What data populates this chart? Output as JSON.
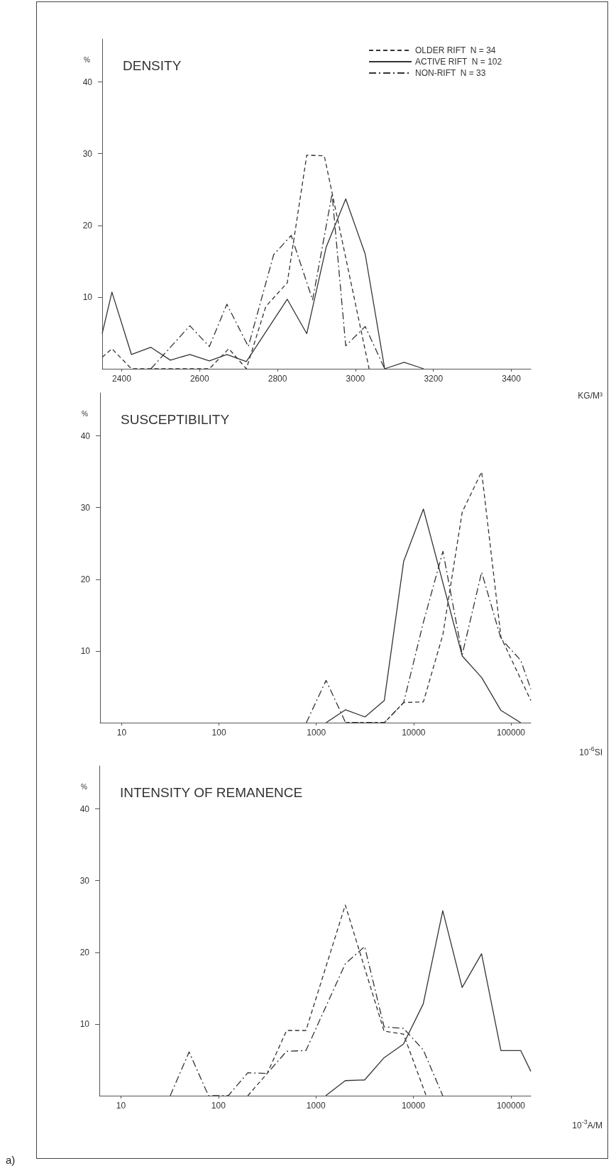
{
  "chart_data": [
    {
      "type": "line",
      "title": "DENSITY",
      "xlabel": "KG/M³",
      "ylabel": "%",
      "xlim": [
        2350,
        3450
      ],
      "xticks": [
        2400,
        2600,
        2800,
        3000,
        3200,
        3400
      ],
      "ylim": [
        0,
        46
      ],
      "yticks": [
        10,
        20,
        30,
        40
      ],
      "grid": false,
      "marker": "none",
      "legend": "top right",
      "series": [
        {
          "name": "OLDER RIFT  N = 34",
          "color": "#333333",
          "line_style": "dashed",
          "x": [
            2350,
            2375,
            2425,
            2475,
            2525,
            2575,
            2625,
            2675,
            2720,
            2770,
            2825,
            2875,
            2920,
            3035
          ],
          "values": [
            1.6,
            2.8,
            0,
            0,
            0,
            0,
            0,
            2.8,
            0,
            8.7,
            12,
            29.8,
            29.7,
            0
          ]
        },
        {
          "name": "ACTIVE RIFT  N = 102",
          "color": "#333333",
          "line_style": "solid",
          "x": [
            2350,
            2375,
            2425,
            2475,
            2525,
            2575,
            2625,
            2670,
            2720,
            2825,
            2875,
            2925,
            2975,
            3025,
            3075,
            3125,
            3175
          ],
          "values": [
            4.9,
            10.7,
            2.0,
            3.0,
            1.2,
            2.0,
            1.1,
            2.0,
            1.0,
            9.7,
            4.9,
            17,
            23.7,
            16,
            0,
            0.9,
            0
          ]
        },
        {
          "name": "NON-RIFT  N = 33",
          "color": "#333333",
          "line_style": "dashdot",
          "x": [
            2475,
            2575,
            2625,
            2670,
            2725,
            2790,
            2835,
            2890,
            2940,
            2975,
            3025,
            3075
          ],
          "values": [
            0,
            6.0,
            3.1,
            9.0,
            3.1,
            15.9,
            18.6,
            9.6,
            24.4,
            3.2,
            5.9,
            0
          ]
        }
      ]
    },
    {
      "type": "line",
      "title": "SUSCEPTIBILITY",
      "xlabel": "10$^{-6}$SI",
      "ylabel": "%",
      "log": "x",
      "xlim": [
        6,
        160000
      ],
      "xticks": [
        10,
        100,
        1000,
        10000,
        100000
      ],
      "ylim": [
        0,
        46
      ],
      "yticks": [
        10,
        20,
        30,
        40
      ],
      "grid": false,
      "marker": "none",
      "series": [
        {
          "color": "#333333",
          "line_style": "dashed",
          "x": [
            2000,
            5000,
            7900,
            12600,
            20000,
            31600,
            50000,
            79000,
            160000
          ],
          "values": [
            0,
            0,
            2.8,
            2.9,
            12.3,
            29.4,
            35,
            11.9,
            3.1
          ]
        },
        {
          "color": "#333333",
          "line_style": "solid",
          "x": [
            1260,
            2000,
            3160,
            5000,
            7900,
            12600,
            31600,
            50000,
            79000,
            126000
          ],
          "values": [
            0,
            1.8,
            0.8,
            3.1,
            22.5,
            29.8,
            9.3,
            6.3,
            1.7,
            0
          ]
        },
        {
          "color": "#333333",
          "line_style": "dashdot",
          "x": [
            790,
            1260,
            2000,
            5000,
            7900,
            12600,
            20000,
            31600,
            50000,
            79000,
            126000,
            160000
          ],
          "values": [
            0,
            5.9,
            0,
            0,
            2.8,
            14,
            23.9,
            9.5,
            21,
            11.7,
            8.7,
            4.7
          ]
        }
      ]
    },
    {
      "type": "line",
      "title": "INTENSITY OF REMANENCE",
      "xlabel": "10$^{-3}$A/M",
      "ylabel": "%",
      "log": "x",
      "xlim": [
        6,
        160000
      ],
      "xticks": [
        10,
        100,
        1000,
        10000,
        100000
      ],
      "ylim": [
        0,
        46
      ],
      "yticks": [
        10,
        20,
        30,
        40
      ],
      "grid": false,
      "marker": "none",
      "annotations": [
        "a)"
      ],
      "series": [
        {
          "color": "#333333",
          "line_style": "dashed",
          "x": [
            200,
            316,
            500,
            790,
            2000,
            5000,
            7900,
            13500
          ],
          "values": [
            0,
            3.1,
            9.1,
            9.1,
            26.6,
            9.0,
            8.6,
            0
          ]
        },
        {
          "color": "#333333",
          "line_style": "solid",
          "x": [
            1260,
            2000,
            3160,
            5000,
            7900,
            12600,
            20000,
            31600,
            50000,
            79000,
            126000,
            160000
          ],
          "values": [
            0,
            2.1,
            2.2,
            5.3,
            7.2,
            12.8,
            25.8,
            15.1,
            19.8,
            6.3,
            6.3,
            3.4
          ]
        },
        {
          "color": "#333333",
          "line_style": "dashdot",
          "x": [
            32,
            50,
            79,
            126,
            200,
            316,
            500,
            790,
            2000,
            3160,
            5000,
            7900,
            12600,
            20000
          ],
          "values": [
            0,
            6.1,
            0,
            0,
            3.2,
            3.1,
            6.2,
            6.3,
            18.4,
            20.8,
            9.6,
            9.4,
            6.4,
            0
          ]
        }
      ]
    }
  ]
}
